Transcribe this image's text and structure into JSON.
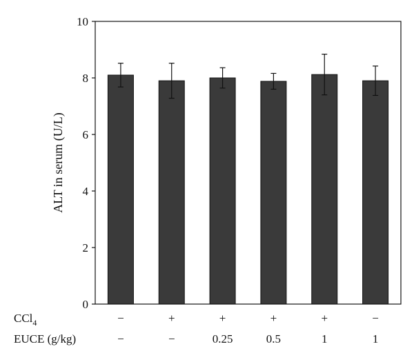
{
  "chart_data": {
    "type": "bar",
    "ylabel": "ALT in serum (U/L)",
    "ylim": [
      0,
      10
    ],
    "yticks": [
      0,
      2,
      4,
      6,
      8,
      10
    ],
    "yticklabels": [
      "0",
      "2",
      "4",
      "6",
      "8",
      "10"
    ],
    "grid": false,
    "bar_color": "#3a3a3a",
    "values": [
      8.1,
      7.9,
      8.0,
      7.88,
      8.12,
      7.9
    ],
    "errors": [
      0.42,
      0.62,
      0.36,
      0.28,
      0.72,
      0.52
    ],
    "conditions": [
      {
        "label": "CCl4",
        "label_main": "CCl",
        "label_sub": "4",
        "values": [
          "−",
          "+",
          "+",
          "+",
          "+",
          "−"
        ]
      },
      {
        "label": "EUCE (g/kg)",
        "label_main": "EUCE (g/kg)",
        "label_sub": "",
        "values": [
          "−",
          "−",
          "0.25",
          "0.5",
          "1",
          "1"
        ]
      }
    ]
  }
}
